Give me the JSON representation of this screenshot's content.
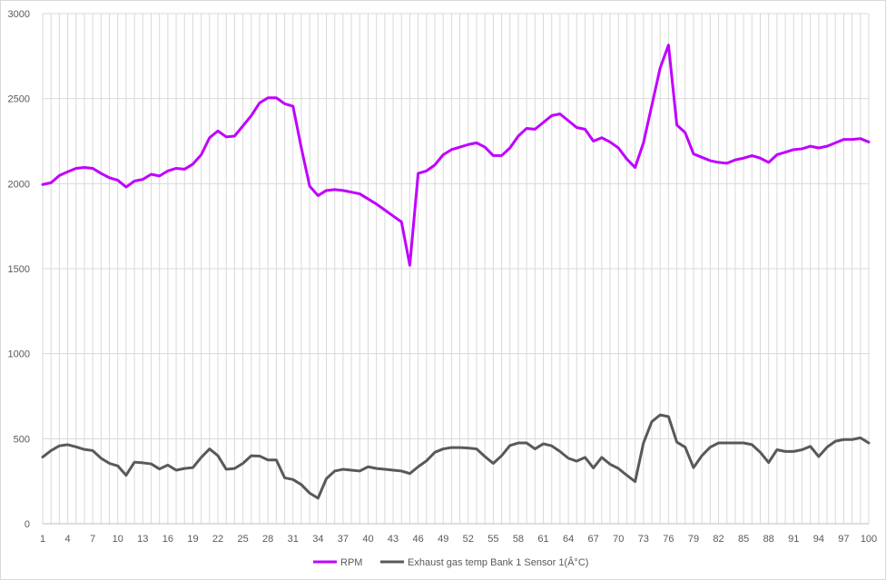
{
  "chart_data": {
    "type": "line",
    "title": "",
    "xlabel": "",
    "ylabel": "",
    "ylim": [
      0,
      3000
    ],
    "yticks": [
      0,
      500,
      1000,
      1500,
      2000,
      2500,
      3000
    ],
    "x": [
      1,
      2,
      3,
      4,
      5,
      6,
      7,
      8,
      9,
      10,
      11,
      12,
      13,
      14,
      15,
      16,
      17,
      18,
      19,
      20,
      21,
      22,
      23,
      24,
      25,
      26,
      27,
      28,
      29,
      30,
      31,
      32,
      33,
      34,
      35,
      36,
      37,
      38,
      39,
      40,
      41,
      42,
      43,
      44,
      45,
      46,
      47,
      48,
      49,
      50,
      51,
      52,
      53,
      54,
      55,
      56,
      57,
      58,
      59,
      60,
      61,
      62,
      63,
      64,
      65,
      66,
      67,
      68,
      69,
      70,
      71,
      72,
      73,
      74,
      75,
      76,
      77,
      78,
      79,
      80,
      81,
      82,
      83,
      84,
      85,
      86,
      87,
      88,
      89,
      90,
      91,
      92,
      93,
      94,
      95,
      96,
      97,
      98,
      99,
      100
    ],
    "xtick_labels": [
      "1",
      "4",
      "7",
      "10",
      "13",
      "16",
      "19",
      "22",
      "25",
      "28",
      "31",
      "34",
      "37",
      "40",
      "43",
      "46",
      "49",
      "52",
      "55",
      "58",
      "61",
      "64",
      "67",
      "70",
      "73",
      "76",
      "79",
      "82",
      "85",
      "88",
      "91",
      "94",
      "97",
      "100"
    ],
    "grid": "vertical and horizontal",
    "legend_position": "bottom",
    "series": [
      {
        "name": "RPM",
        "color": "#c000ff",
        "values": [
          1995,
          2005,
          2048,
          2070,
          2090,
          2095,
          2090,
          2060,
          2035,
          2020,
          1980,
          2015,
          2025,
          2055,
          2045,
          2075,
          2090,
          2085,
          2115,
          2170,
          2270,
          2310,
          2275,
          2280,
          2340,
          2400,
          2475,
          2505,
          2505,
          2470,
          2455,
          2210,
          1985,
          1930,
          1960,
          1965,
          1960,
          1950,
          1940,
          1910,
          1880,
          1845,
          1810,
          1775,
          1520,
          2060,
          2075,
          2110,
          2170,
          2200,
          2215,
          2230,
          2240,
          2215,
          2165,
          2165,
          2210,
          2280,
          2325,
          2320,
          2360,
          2400,
          2410,
          2370,
          2330,
          2320,
          2250,
          2270,
          2245,
          2210,
          2145,
          2095,
          2240,
          2460,
          2680,
          2815,
          2345,
          2300,
          2175,
          2155,
          2135,
          2125,
          2120,
          2140,
          2150,
          2165,
          2150,
          2125,
          2170,
          2185,
          2200,
          2205,
          2220,
          2210,
          2220,
          2240,
          2260,
          2260,
          2265,
          2245
        ]
      },
      {
        "name": "Exhaust gas temp Bank 1 Sensor 1(Â°C)",
        "color": "#595959",
        "values": [
          392,
          430,
          458,
          465,
          452,
          437,
          430,
          385,
          355,
          340,
          285,
          362,
          358,
          352,
          322,
          345,
          315,
          325,
          330,
          390,
          440,
          400,
          320,
          325,
          355,
          400,
          398,
          375,
          375,
          270,
          260,
          230,
          180,
          150,
          265,
          310,
          320,
          315,
          310,
          335,
          325,
          320,
          315,
          310,
          295,
          335,
          370,
          420,
          440,
          448,
          448,
          445,
          440,
          395,
          355,
          400,
          460,
          475,
          475,
          440,
          470,
          458,
          425,
          385,
          368,
          390,
          328,
          390,
          350,
          325,
          285,
          248,
          475,
          600,
          640,
          630,
          480,
          450,
          330,
          400,
          450,
          475,
          475,
          475,
          475,
          465,
          420,
          360,
          435,
          425,
          425,
          435,
          455,
          395,
          450,
          485,
          495,
          495,
          505,
          475
        ]
      }
    ]
  }
}
